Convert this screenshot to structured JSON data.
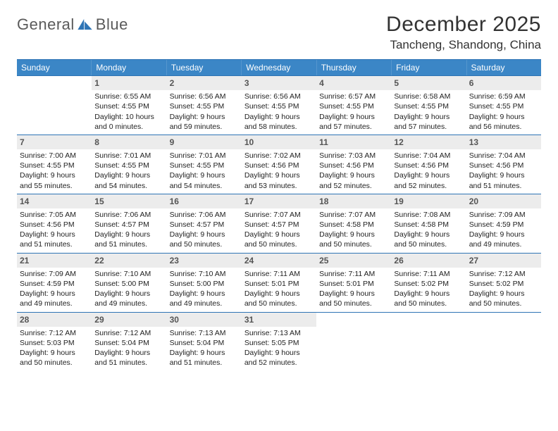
{
  "brand": {
    "part1": "General",
    "part2": "Blue"
  },
  "title": "December 2025",
  "location": "Tancheng, Shandong, China",
  "colors": {
    "header_bg": "#3b86c6",
    "header_text": "#ffffff",
    "rule": "#2e74b5",
    "daynum_bg": "#ececec",
    "logo_blue": "#2e74b5"
  },
  "day_headers": [
    "Sunday",
    "Monday",
    "Tuesday",
    "Wednesday",
    "Thursday",
    "Friday",
    "Saturday"
  ],
  "weeks": [
    [
      {
        "blank": true
      },
      {
        "n": "1",
        "sr": "Sunrise: 6:55 AM",
        "ss": "Sunset: 4:55 PM",
        "d1": "Daylight: 10 hours",
        "d2": "and 0 minutes."
      },
      {
        "n": "2",
        "sr": "Sunrise: 6:56 AM",
        "ss": "Sunset: 4:55 PM",
        "d1": "Daylight: 9 hours",
        "d2": "and 59 minutes."
      },
      {
        "n": "3",
        "sr": "Sunrise: 6:56 AM",
        "ss": "Sunset: 4:55 PM",
        "d1": "Daylight: 9 hours",
        "d2": "and 58 minutes."
      },
      {
        "n": "4",
        "sr": "Sunrise: 6:57 AM",
        "ss": "Sunset: 4:55 PM",
        "d1": "Daylight: 9 hours",
        "d2": "and 57 minutes."
      },
      {
        "n": "5",
        "sr": "Sunrise: 6:58 AM",
        "ss": "Sunset: 4:55 PM",
        "d1": "Daylight: 9 hours",
        "d2": "and 57 minutes."
      },
      {
        "n": "6",
        "sr": "Sunrise: 6:59 AM",
        "ss": "Sunset: 4:55 PM",
        "d1": "Daylight: 9 hours",
        "d2": "and 56 minutes."
      }
    ],
    [
      {
        "n": "7",
        "sr": "Sunrise: 7:00 AM",
        "ss": "Sunset: 4:55 PM",
        "d1": "Daylight: 9 hours",
        "d2": "and 55 minutes."
      },
      {
        "n": "8",
        "sr": "Sunrise: 7:01 AM",
        "ss": "Sunset: 4:55 PM",
        "d1": "Daylight: 9 hours",
        "d2": "and 54 minutes."
      },
      {
        "n": "9",
        "sr": "Sunrise: 7:01 AM",
        "ss": "Sunset: 4:55 PM",
        "d1": "Daylight: 9 hours",
        "d2": "and 54 minutes."
      },
      {
        "n": "10",
        "sr": "Sunrise: 7:02 AM",
        "ss": "Sunset: 4:56 PM",
        "d1": "Daylight: 9 hours",
        "d2": "and 53 minutes."
      },
      {
        "n": "11",
        "sr": "Sunrise: 7:03 AM",
        "ss": "Sunset: 4:56 PM",
        "d1": "Daylight: 9 hours",
        "d2": "and 52 minutes."
      },
      {
        "n": "12",
        "sr": "Sunrise: 7:04 AM",
        "ss": "Sunset: 4:56 PM",
        "d1": "Daylight: 9 hours",
        "d2": "and 52 minutes."
      },
      {
        "n": "13",
        "sr": "Sunrise: 7:04 AM",
        "ss": "Sunset: 4:56 PM",
        "d1": "Daylight: 9 hours",
        "d2": "and 51 minutes."
      }
    ],
    [
      {
        "n": "14",
        "sr": "Sunrise: 7:05 AM",
        "ss": "Sunset: 4:56 PM",
        "d1": "Daylight: 9 hours",
        "d2": "and 51 minutes."
      },
      {
        "n": "15",
        "sr": "Sunrise: 7:06 AM",
        "ss": "Sunset: 4:57 PM",
        "d1": "Daylight: 9 hours",
        "d2": "and 51 minutes."
      },
      {
        "n": "16",
        "sr": "Sunrise: 7:06 AM",
        "ss": "Sunset: 4:57 PM",
        "d1": "Daylight: 9 hours",
        "d2": "and 50 minutes."
      },
      {
        "n": "17",
        "sr": "Sunrise: 7:07 AM",
        "ss": "Sunset: 4:57 PM",
        "d1": "Daylight: 9 hours",
        "d2": "and 50 minutes."
      },
      {
        "n": "18",
        "sr": "Sunrise: 7:07 AM",
        "ss": "Sunset: 4:58 PM",
        "d1": "Daylight: 9 hours",
        "d2": "and 50 minutes."
      },
      {
        "n": "19",
        "sr": "Sunrise: 7:08 AM",
        "ss": "Sunset: 4:58 PM",
        "d1": "Daylight: 9 hours",
        "d2": "and 50 minutes."
      },
      {
        "n": "20",
        "sr": "Sunrise: 7:09 AM",
        "ss": "Sunset: 4:59 PM",
        "d1": "Daylight: 9 hours",
        "d2": "and 49 minutes."
      }
    ],
    [
      {
        "n": "21",
        "sr": "Sunrise: 7:09 AM",
        "ss": "Sunset: 4:59 PM",
        "d1": "Daylight: 9 hours",
        "d2": "and 49 minutes."
      },
      {
        "n": "22",
        "sr": "Sunrise: 7:10 AM",
        "ss": "Sunset: 5:00 PM",
        "d1": "Daylight: 9 hours",
        "d2": "and 49 minutes."
      },
      {
        "n": "23",
        "sr": "Sunrise: 7:10 AM",
        "ss": "Sunset: 5:00 PM",
        "d1": "Daylight: 9 hours",
        "d2": "and 49 minutes."
      },
      {
        "n": "24",
        "sr": "Sunrise: 7:11 AM",
        "ss": "Sunset: 5:01 PM",
        "d1": "Daylight: 9 hours",
        "d2": "and 50 minutes."
      },
      {
        "n": "25",
        "sr": "Sunrise: 7:11 AM",
        "ss": "Sunset: 5:01 PM",
        "d1": "Daylight: 9 hours",
        "d2": "and 50 minutes."
      },
      {
        "n": "26",
        "sr": "Sunrise: 7:11 AM",
        "ss": "Sunset: 5:02 PM",
        "d1": "Daylight: 9 hours",
        "d2": "and 50 minutes."
      },
      {
        "n": "27",
        "sr": "Sunrise: 7:12 AM",
        "ss": "Sunset: 5:02 PM",
        "d1": "Daylight: 9 hours",
        "d2": "and 50 minutes."
      }
    ],
    [
      {
        "n": "28",
        "sr": "Sunrise: 7:12 AM",
        "ss": "Sunset: 5:03 PM",
        "d1": "Daylight: 9 hours",
        "d2": "and 50 minutes."
      },
      {
        "n": "29",
        "sr": "Sunrise: 7:12 AM",
        "ss": "Sunset: 5:04 PM",
        "d1": "Daylight: 9 hours",
        "d2": "and 51 minutes."
      },
      {
        "n": "30",
        "sr": "Sunrise: 7:13 AM",
        "ss": "Sunset: 5:04 PM",
        "d1": "Daylight: 9 hours",
        "d2": "and 51 minutes."
      },
      {
        "n": "31",
        "sr": "Sunrise: 7:13 AM",
        "ss": "Sunset: 5:05 PM",
        "d1": "Daylight: 9 hours",
        "d2": "and 52 minutes."
      },
      {
        "blank": true
      },
      {
        "blank": true
      },
      {
        "blank": true
      }
    ]
  ]
}
